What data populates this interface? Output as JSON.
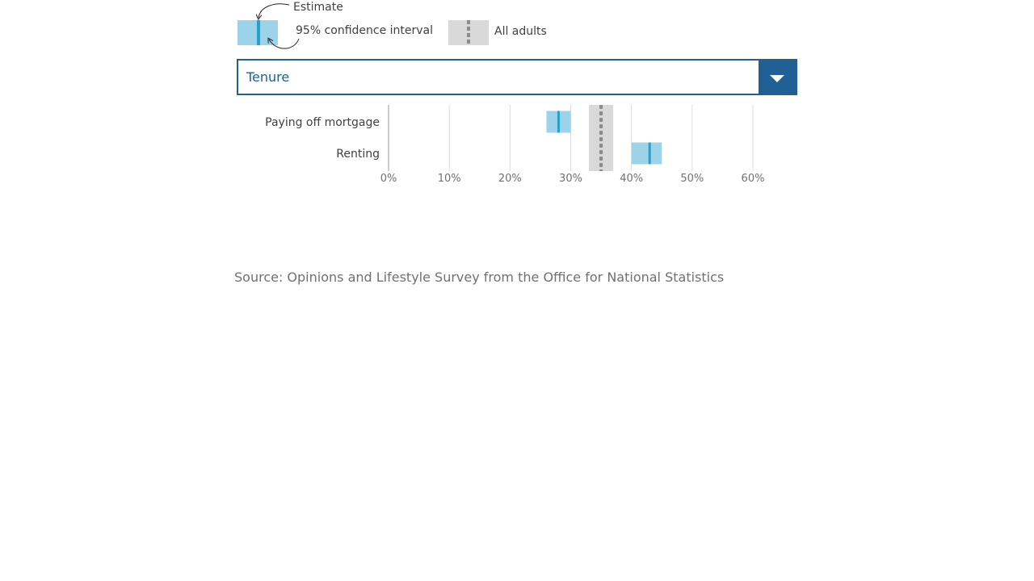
{
  "legend": {
    "estimate_label": "Estimate",
    "ci_label": "95% confidence interval",
    "all_adults_label": "All adults"
  },
  "dropdown": {
    "selected": "Tenure"
  },
  "chart_data": {
    "type": "bar",
    "orientation": "horizontal",
    "categories": [
      "Paying off mortgage",
      "Renting"
    ],
    "series": [
      {
        "name": "Estimate",
        "values": [
          28,
          43
        ]
      },
      {
        "name": "95% confidence interval",
        "values": [
          [
            26,
            30
          ],
          [
            40,
            45
          ]
        ]
      }
    ],
    "reference": {
      "name": "All adults",
      "estimate": 35,
      "ci": [
        33,
        37
      ]
    },
    "xlim": [
      0,
      60
    ],
    "xticks": [
      0,
      10,
      20,
      30,
      40,
      50,
      60
    ],
    "xtick_labels": [
      "0%",
      "10%",
      "20%",
      "30%",
      "40%",
      "50%",
      "60%"
    ],
    "grid": true,
    "colors": {
      "ci": "#9dd3e9",
      "estimate": "#27a0cc",
      "reference_band": "#d9d9d9",
      "reference_line": "#8c8c8c",
      "gridline": "#dcdcdc"
    }
  },
  "source": "Source: Opinions and Lifestyle Survey from the Office for National Statistics"
}
